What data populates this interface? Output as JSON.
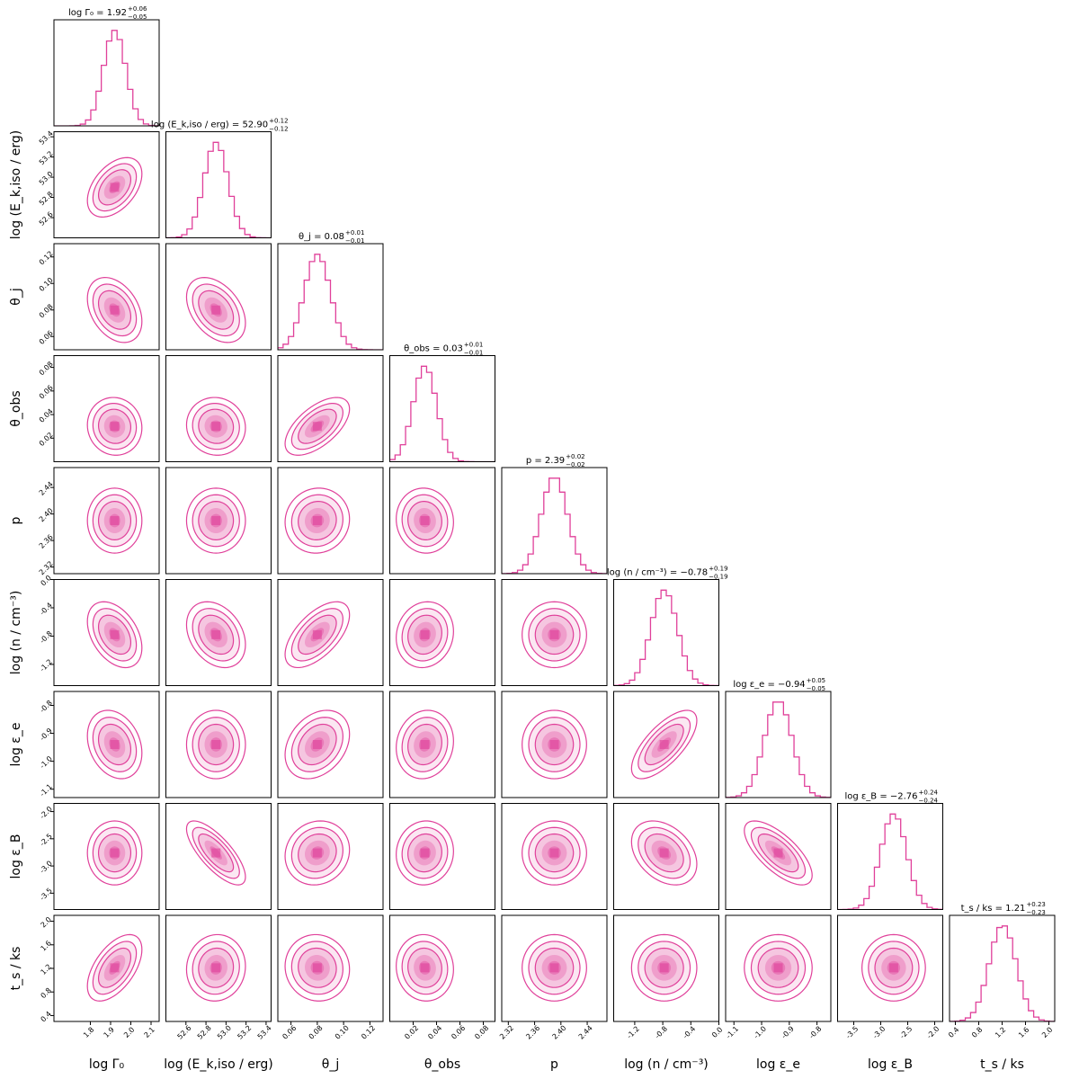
{
  "chart_data": {
    "type": "corner",
    "color": "#e0409a",
    "parameters": [
      {
        "label": "log Γ₀",
        "title": "log Γ₀ = 1.92",
        "median": 1.92,
        "err_plus": 0.06,
        "err_minus": 0.05,
        "range": [
          1.62,
          2.14
        ],
        "ticks": [
          "1.8",
          "1.9",
          "2.0",
          "2.1"
        ]
      },
      {
        "label": "log (E_k,iso / erg)",
        "title": "log (E_k,iso / erg) = 52.90",
        "median": 52.9,
        "err_plus": 0.12,
        "err_minus": 0.12,
        "range": [
          52.4,
          53.45
        ],
        "ticks": [
          "52.6",
          "52.8",
          "53.0",
          "53.2",
          "53.4"
        ]
      },
      {
        "label": "θ_j",
        "title": "θ_j = 0.08",
        "median": 0.08,
        "err_plus": 0.01,
        "err_minus": 0.01,
        "range": [
          0.05,
          0.13
        ],
        "ticks": [
          "0.06",
          "0.08",
          "0.10",
          "0.12"
        ]
      },
      {
        "label": "θ_obs",
        "title": "θ_obs = 0.03",
        "median": 0.03,
        "err_plus": 0.01,
        "err_minus": 0.01,
        "range": [
          0.0,
          0.09
        ],
        "ticks": [
          "0.02",
          "0.04",
          "0.06",
          "0.08"
        ]
      },
      {
        "label": "p",
        "title": "p = 2.39",
        "median": 2.39,
        "err_plus": 0.02,
        "err_minus": 0.02,
        "range": [
          2.31,
          2.47
        ],
        "ticks": [
          "2.32",
          "2.36",
          "2.40",
          "2.44"
        ]
      },
      {
        "label": "log (n / cm⁻³)",
        "title": "log (n / cm⁻³) = −0.78",
        "median": -0.78,
        "err_plus": 0.19,
        "err_minus": 0.19,
        "range": [
          -1.5,
          0.0
        ],
        "ticks": [
          "-1.2",
          "-0.8",
          "-0.4",
          "0.0"
        ]
      },
      {
        "label": "log ε_e",
        "title": "log ε_e = −0.94",
        "median": -0.94,
        "err_plus": 0.05,
        "err_minus": 0.05,
        "range": [
          -1.13,
          -0.75
        ],
        "ticks": [
          "-1.1",
          "-1.0",
          "-0.9",
          "-0.8"
        ]
      },
      {
        "label": "log ε_B",
        "title": "log ε_B = −2.76",
        "median": -2.76,
        "err_plus": 0.24,
        "err_minus": 0.24,
        "range": [
          -3.8,
          -1.85
        ],
        "ticks": [
          "-3.5",
          "-3.0",
          "-2.5",
          "-2.0"
        ]
      },
      {
        "label": "t_s / ks",
        "title": "t_s / ks = 1.21",
        "median": 1.21,
        "err_plus": 0.23,
        "err_minus": 0.23,
        "range": [
          0.3,
          2.1
        ],
        "ticks": [
          "0.4",
          "0.8",
          "1.2",
          "1.6",
          "2.0"
        ]
      }
    ],
    "correlations": {
      "1,0": 0.45,
      "2,0": -0.35,
      "2,1": -0.4,
      "3,0": -0.05,
      "3,1": -0.05,
      "3,2": 0.6,
      "4,0": 0.0,
      "4,1": 0.0,
      "4,2": 0.05,
      "4,3": -0.05,
      "5,0": -0.4,
      "5,1": -0.3,
      "5,2": 0.6,
      "5,3": 0.1,
      "5,4": 0.0,
      "6,0": -0.25,
      "6,1": 0.0,
      "6,2": 0.3,
      "6,3": 0.1,
      "6,4": 0.0,
      "6,5": 0.7,
      "7,0": 0.0,
      "7,1": -0.75,
      "7,2": 0.1,
      "7,3": 0.05,
      "7,4": 0.0,
      "7,5": -0.35,
      "7,6": -0.7,
      "8,0": 0.55,
      "8,1": 0.05,
      "8,2": -0.05,
      "8,3": -0.05,
      "8,4": 0.0,
      "8,5": 0.0,
      "8,6": 0.0,
      "8,7": 0.0
    }
  }
}
